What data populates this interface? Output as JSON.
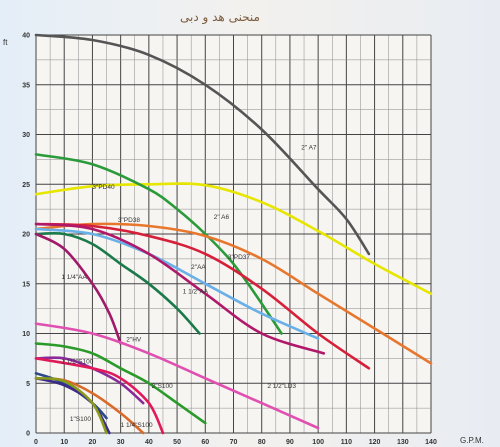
{
  "chart_data": {
    "type": "line",
    "title": "منحنی هد و دبی",
    "xlabel": "G.P.M.",
    "ylabel": "ft",
    "xlim": [
      0,
      140
    ],
    "ylim": [
      0,
      40
    ],
    "x_ticks": [
      0,
      10,
      20,
      30,
      40,
      50,
      60,
      70,
      80,
      90,
      100,
      110,
      120,
      130,
      140
    ],
    "y_ticks": [
      0,
      5,
      10,
      15,
      20,
      25,
      30,
      35,
      40
    ],
    "grid": true,
    "series": [
      {
        "name": "2\" A7",
        "color": "#555555",
        "points": [
          [
            0,
            40
          ],
          [
            20,
            39.5
          ],
          [
            40,
            38
          ],
          [
            60,
            35
          ],
          [
            80,
            30.5
          ],
          [
            100,
            24.5
          ],
          [
            110,
            21.5
          ],
          [
            118,
            18
          ]
        ]
      },
      {
        "name": "3\"PD40",
        "color": "#e6e600",
        "points": [
          [
            0,
            24
          ],
          [
            20,
            24.8
          ],
          [
            40,
            25
          ],
          [
            60,
            24.9
          ],
          [
            80,
            23.2
          ],
          [
            100,
            20.3
          ],
          [
            120,
            17
          ],
          [
            140,
            14
          ]
        ]
      },
      {
        "name": "2\" A6",
        "color": "#2a9a3a",
        "points": [
          [
            0,
            28
          ],
          [
            20,
            27
          ],
          [
            40,
            24.5
          ],
          [
            50,
            22.5
          ],
          [
            60,
            20
          ],
          [
            70,
            17
          ],
          [
            80,
            13
          ],
          [
            87,
            10
          ]
        ]
      },
      {
        "name": "3\"PD38",
        "color": "#e8772e",
        "points": [
          [
            0,
            20.5
          ],
          [
            20,
            21
          ],
          [
            40,
            20.8
          ],
          [
            60,
            19.8
          ],
          [
            80,
            17.5
          ],
          [
            100,
            14
          ],
          [
            120,
            10.5
          ],
          [
            140,
            7
          ]
        ]
      },
      {
        "name": "3\"PD37",
        "color": "#d6203a",
        "points": [
          [
            0,
            21
          ],
          [
            20,
            20.8
          ],
          [
            40,
            19.8
          ],
          [
            60,
            18
          ],
          [
            80,
            14.5
          ],
          [
            100,
            10
          ],
          [
            118,
            6.5
          ]
        ]
      },
      {
        "name": "2\"AA",
        "color": "#6ab0e8",
        "points": [
          [
            0,
            20.5
          ],
          [
            20,
            20
          ],
          [
            40,
            18
          ],
          [
            60,
            15
          ],
          [
            80,
            12
          ],
          [
            100,
            9.5
          ]
        ]
      },
      {
        "name": "2\"AA",
        "color": "#b0186a",
        "points": [
          [
            0,
            21
          ],
          [
            20,
            20.5
          ],
          [
            40,
            18
          ],
          [
            60,
            14
          ],
          [
            80,
            10
          ],
          [
            102,
            8
          ]
        ]
      },
      {
        "name": "1 1/2\"AA",
        "color": "#1a7a4a",
        "points": [
          [
            0,
            20
          ],
          [
            10,
            20
          ],
          [
            20,
            19
          ],
          [
            30,
            17
          ],
          [
            40,
            15
          ],
          [
            50,
            12.5
          ],
          [
            58,
            10
          ]
        ]
      },
      {
        "name": "1 1/4\"AA",
        "color": "#a01a6a",
        "points": [
          [
            0,
            20
          ],
          [
            10,
            18.5
          ],
          [
            20,
            15
          ],
          [
            26,
            12
          ],
          [
            30,
            9
          ]
        ]
      },
      {
        "name": "2 1/2\"LD3",
        "color": "#e050b0",
        "points": [
          [
            0,
            11
          ],
          [
            20,
            10
          ],
          [
            40,
            8
          ],
          [
            60,
            5.5
          ],
          [
            80,
            3
          ],
          [
            100,
            0.5
          ]
        ]
      },
      {
        "name": "2\"HV",
        "color": "#2a9a2a",
        "points": [
          [
            0,
            9
          ],
          [
            10,
            8.7
          ],
          [
            20,
            8
          ],
          [
            30,
            6.5
          ],
          [
            40,
            5
          ],
          [
            50,
            3
          ],
          [
            60,
            1
          ]
        ]
      },
      {
        "name": "1 1/2\"S100",
        "color": "#8a2a9a",
        "points": [
          [
            0,
            7.5
          ],
          [
            10,
            7.5
          ],
          [
            20,
            6.5
          ],
          [
            30,
            5
          ],
          [
            38,
            3
          ]
        ]
      },
      {
        "name": "2\"S100",
        "color": "#e01a5a",
        "points": [
          [
            0,
            7.5
          ],
          [
            20,
            6.5
          ],
          [
            30,
            5.5
          ],
          [
            40,
            3
          ],
          [
            45,
            0
          ]
        ]
      },
      {
        "name": "1 1/4\"S100",
        "color": "#d86a2a",
        "points": [
          [
            0,
            5.5
          ],
          [
            10,
            5.3
          ],
          [
            20,
            4
          ],
          [
            30,
            2
          ],
          [
            38,
            0
          ]
        ]
      },
      {
        "name": "1\"S100",
        "color": "#2a4a8a",
        "points": [
          [
            0,
            6
          ],
          [
            10,
            5
          ],
          [
            20,
            3
          ],
          [
            25,
            1.5
          ]
        ]
      },
      {
        "name": "",
        "color": "#3a2a8a",
        "points": [
          [
            0,
            5.5
          ],
          [
            10,
            4.8
          ],
          [
            20,
            3
          ],
          [
            26,
            0
          ]
        ]
      },
      {
        "name": "",
        "color": "#8a9a1a",
        "points": [
          [
            0,
            5.5
          ],
          [
            10,
            5.2
          ],
          [
            20,
            3
          ],
          [
            25,
            0
          ]
        ]
      }
    ],
    "labels": [
      {
        "text": "2\" A7",
        "x": 94,
        "y": 28.5
      },
      {
        "text": "3\"PD40",
        "x": 20,
        "y": 24.5
      },
      {
        "text": "2\" A6",
        "x": 63,
        "y": 21.5
      },
      {
        "text": "3\"PD38",
        "x": 29,
        "y": 21.2
      },
      {
        "text": "3\"PD37",
        "x": 68,
        "y": 17.5
      },
      {
        "text": "2\"AA",
        "x": 55,
        "y": 16.5
      },
      {
        "text": "1 1/2\"AA",
        "x": 52,
        "y": 14
      },
      {
        "text": "1 1/4\"AA",
        "x": 9,
        "y": 15.5
      },
      {
        "text": "2\"HV",
        "x": 32,
        "y": 9.2
      },
      {
        "text": "1 1/2\"S100",
        "x": 9,
        "y": 7
      },
      {
        "text": "2\"S100",
        "x": 41,
        "y": 4.5
      },
      {
        "text": "2 1/2\"LD3",
        "x": 82,
        "y": 4.5
      },
      {
        "text": "1\"S100",
        "x": 12,
        "y": 1.2
      },
      {
        "text": "1 1/4\"S100",
        "x": 30,
        "y": 0.6
      }
    ]
  }
}
